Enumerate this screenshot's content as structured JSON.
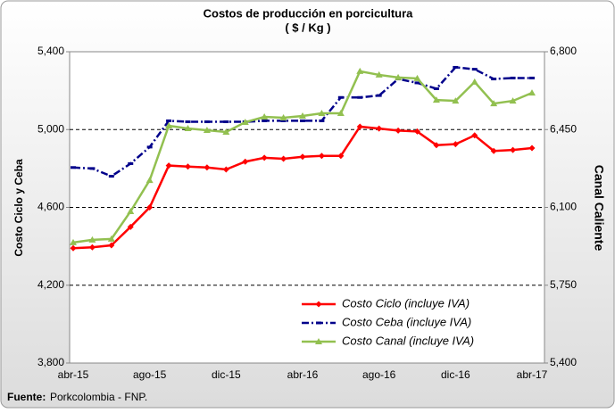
{
  "chart_data": {
    "type": "line",
    "title": "Costos de producción  en porcicultura",
    "subtitle": "( $ / Kg )",
    "y_label": "Costo Ciclo  y Ceba",
    "y2_label": "Canal Caliente",
    "source_label": "Fuente:",
    "source": "Porkcolombia - FNP.",
    "categories": [
      "abr-15",
      null,
      null,
      null,
      "ago-15",
      null,
      null,
      null,
      "dic-15",
      null,
      null,
      null,
      "abr-16",
      null,
      null,
      null,
      "ago-16",
      null,
      null,
      null,
      "dic-16",
      null,
      null,
      null,
      "abr-17"
    ],
    "ylim": [
      3800,
      5400
    ],
    "yticks": [
      {
        "value": 3800,
        "label": "3,800"
      },
      {
        "value": 4200,
        "label": "4,200"
      },
      {
        "value": 4600,
        "label": "4,600"
      },
      {
        "value": 5000,
        "label": "5,000"
      },
      {
        "value": 5400,
        "label": "5,400"
      }
    ],
    "y2lim": [
      5400,
      6800
    ],
    "y2ticks": [
      {
        "value": 5400,
        "label": "5,400"
      },
      {
        "value": 5750,
        "label": "5,750"
      },
      {
        "value": 6100,
        "label": "6,100"
      },
      {
        "value": 6450,
        "label": "6,450"
      },
      {
        "value": 6800,
        "label": "6,800"
      }
    ],
    "grid": true,
    "legend": "lower right",
    "series": [
      {
        "name": "Costo Ciclo (incluye IVA)",
        "color": "#ff0000",
        "marker": "diamond",
        "dash": "solid",
        "values": [
          4390,
          4395,
          4405,
          4500,
          4600,
          4815,
          4810,
          4805,
          4795,
          4835,
          4855,
          4850,
          4860,
          4865,
          4865,
          5015,
          5005,
          4995,
          4990,
          4920,
          4925,
          4970,
          4890,
          4895,
          4905
        ]
      },
      {
        "name": "Costo Ceba (incluye IVA)",
        "color": "#00008b",
        "marker": "dash",
        "dash": "dashdot",
        "values": [
          4805,
          4800,
          4760,
          4825,
          4910,
          5045,
          5040,
          5040,
          5040,
          5040,
          5045,
          5045,
          5045,
          5045,
          5165,
          5165,
          5175,
          5260,
          5240,
          5210,
          5320,
          5310,
          5260,
          5265,
          5265
        ]
      },
      {
        "name": "Costo Canal (incluye IVA)",
        "color": "#92c050",
        "marker": "triangle",
        "dash": "solid",
        "axis": "y2",
        "values": [
          5942,
          5954,
          5958,
          6082,
          6222,
          6467,
          6455,
          6447,
          6439,
          6483,
          6507,
          6503,
          6511,
          6523,
          6523,
          6712,
          6696,
          6684,
          6680,
          6583,
          6579,
          6664,
          6567,
          6579,
          6615
        ]
      }
    ]
  }
}
